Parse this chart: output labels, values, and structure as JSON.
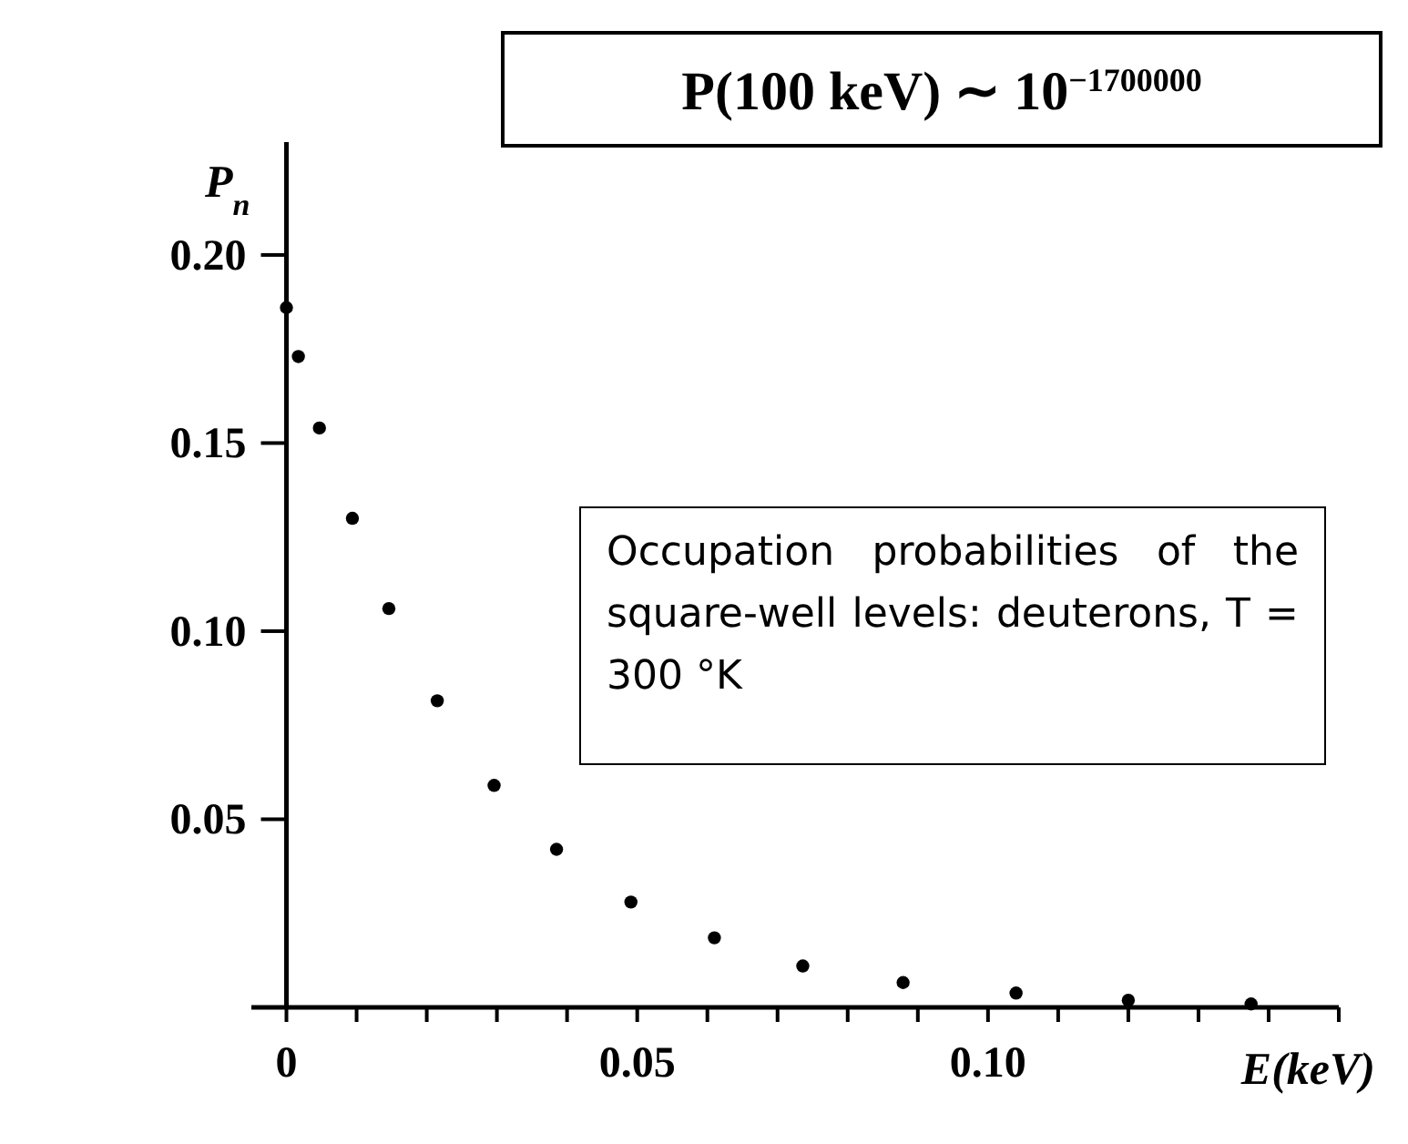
{
  "chart_data": {
    "type": "scatter",
    "xlabel": "E(keV)",
    "ylabel": "P$_{n}$",
    "x": [
      0,
      0.0017,
      0.0047,
      0.0094,
      0.0146,
      0.0215,
      0.0296,
      0.0385,
      0.0491,
      0.061,
      0.0736,
      0.0879,
      0.104,
      0.12,
      0.1375
    ],
    "series": [
      {
        "color": "#000000",
        "values": [
          0.186,
          0.173,
          0.154,
          0.13,
          0.106,
          0.0815,
          0.059,
          0.042,
          0.028,
          0.0185,
          0.011,
          0.0066,
          0.0038,
          0.0019,
          0.0009
        ]
      }
    ],
    "xlim": [
      -0.005,
      0.15
    ],
    "ylim": [
      0,
      0.23
    ],
    "xticks": [
      0,
      {
        "value": 0.01,
        "label": null
      },
      {
        "value": 0.02,
        "label": null
      },
      {
        "value": 0.03,
        "label": null
      },
      {
        "value": 0.04,
        "label": null
      },
      {
        "value": 0.05,
        "label": "0.05"
      },
      {
        "value": 0.06,
        "label": null
      },
      {
        "value": 0.07,
        "label": null
      },
      {
        "value": 0.08,
        "label": null
      },
      {
        "value": 0.09,
        "label": null
      },
      {
        "value": 0.1,
        "label": "0.10"
      },
      {
        "value": 0.11,
        "label": null
      },
      {
        "value": 0.12,
        "label": null
      },
      {
        "value": 0.13,
        "label": null
      },
      {
        "value": 0.14,
        "label": null
      },
      {
        "value": 0.15,
        "label": null
      }
    ],
    "yticks": [
      0.05,
      {
        "value": 0.1,
        "label": "0.10"
      },
      0.15,
      {
        "value": 0.2,
        "label": "0.20"
      }
    ],
    "marker": "circle",
    "annotations": [
      "P(100 keV) ∼ 10$^{−1700000}$",
      "Occupation probabilities of the square-well levels: deuterons, T = 300 °K"
    ]
  }
}
